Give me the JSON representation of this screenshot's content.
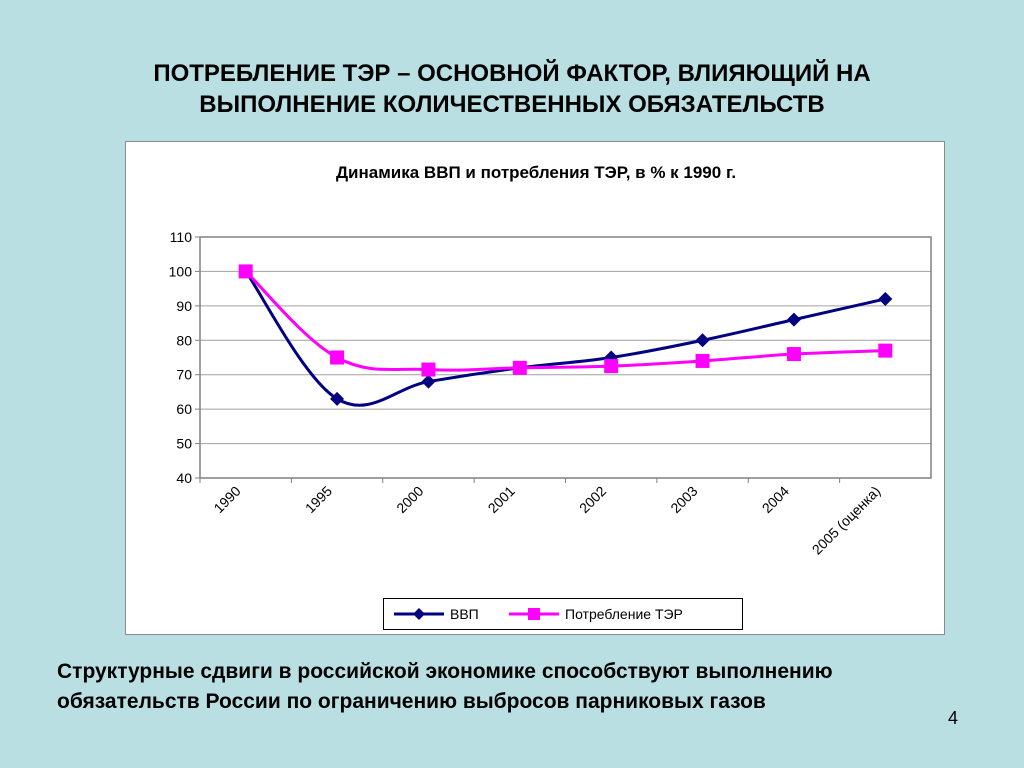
{
  "slide": {
    "title_line1": "ПОТРЕБЛЕНИЕ ТЭР – ОСНОВНОЙ ФАКТОР, ВЛИЯЮЩИЙ НА",
    "title_line2": "ВЫПОЛНЕНИЕ КОЛИЧЕСТВЕННЫХ ОБЯЗАТЕЛЬСТВ",
    "caption_line1": "Структурные сдвиги в российской экономике способствуют выполнению",
    "caption_line2": "обязательств России по ограничению выбросов парниковых газов",
    "page_number": "4"
  },
  "chart_data": {
    "type": "line",
    "title": "Динамика ВВП и потребления ТЭР, в % к 1990 г.",
    "categories": [
      "1990",
      "1995",
      "2000",
      "2001",
      "2002",
      "2003",
      "2004",
      "2005   (оценка)"
    ],
    "series": [
      {
        "name": "ВВП",
        "color": "#000080",
        "marker": "diamond",
        "values": [
          100,
          63,
          68,
          72,
          75,
          80,
          86,
          92
        ]
      },
      {
        "name": "Потребление ТЭР",
        "color": "#ff00ff",
        "marker": "square",
        "values": [
          100,
          75,
          71.5,
          72,
          72.5,
          74,
          76,
          77
        ]
      }
    ],
    "ylim": [
      40,
      110
    ],
    "yticks": [
      "40",
      "50",
      "60",
      "70",
      "80",
      "90",
      "100",
      "110"
    ],
    "grid": true,
    "legend": "bottom"
  }
}
